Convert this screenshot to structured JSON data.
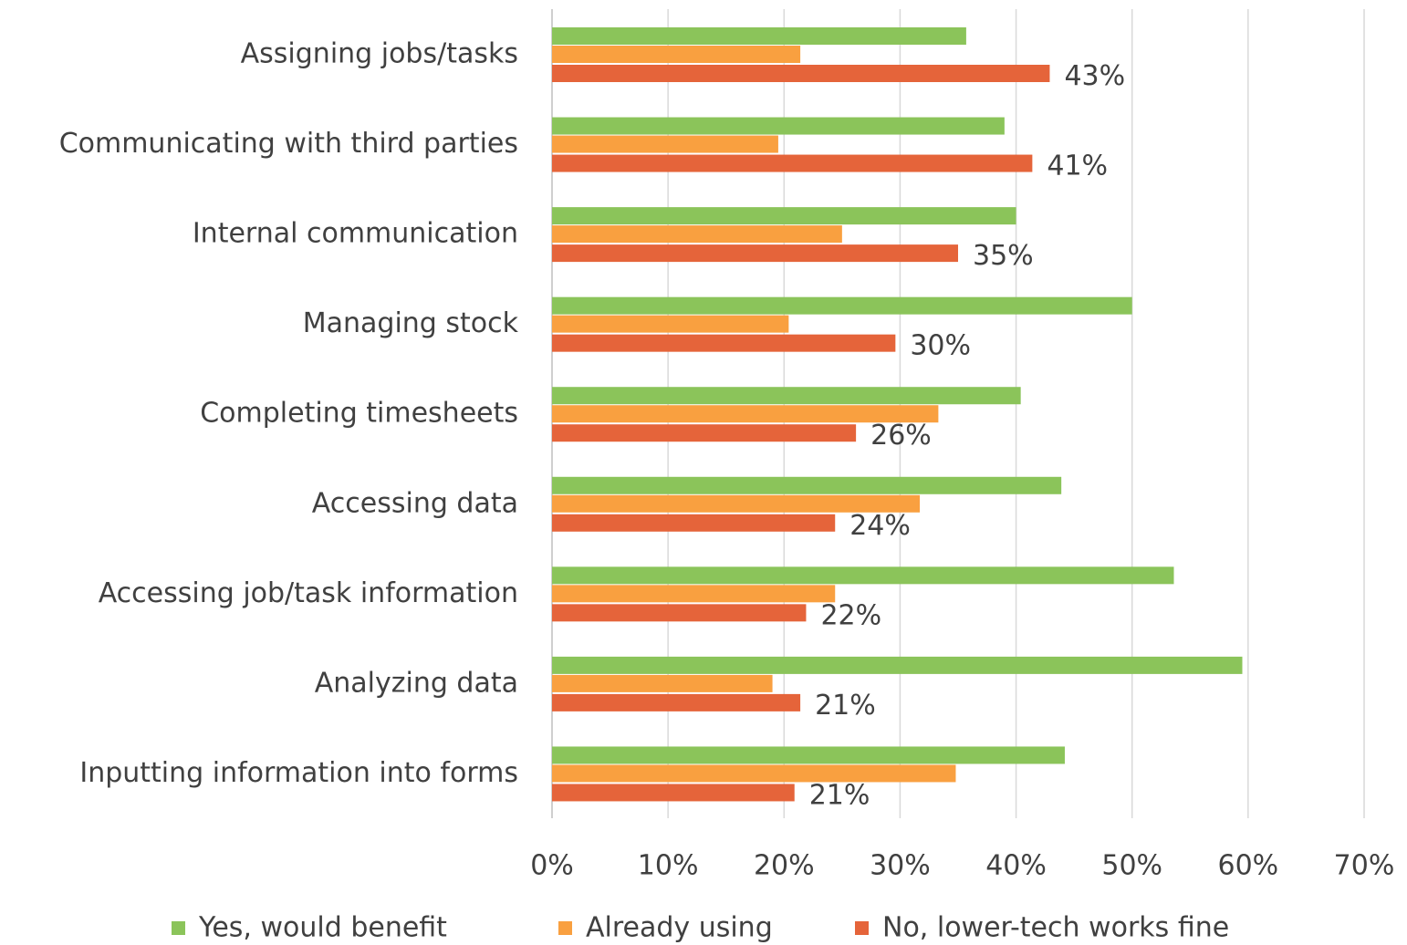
{
  "chart_data": {
    "type": "hbar",
    "categories": [
      "Assigning jobs/tasks",
      "Communicating with third parties",
      "Internal communication",
      "Managing stock",
      "Completing timesheets",
      "Accessing data",
      "Accessing job/task information",
      "Analyzing data",
      "Inputting information into forms"
    ],
    "series": [
      {
        "name": "Yes, would benefit",
        "color": "#8bc45a",
        "values": [
          35.7,
          39.0,
          40.0,
          50.0,
          40.4,
          43.9,
          53.6,
          59.5,
          44.2
        ]
      },
      {
        "name": "Already using",
        "color": "#f9a040",
        "values": [
          21.4,
          19.5,
          25.0,
          20.4,
          33.3,
          31.7,
          24.4,
          19.0,
          34.8
        ]
      },
      {
        "name": "No, lower-tech works fine",
        "color": "#e5643a",
        "values": [
          42.9,
          41.4,
          35.0,
          29.6,
          26.2,
          24.4,
          21.9,
          21.4,
          20.9
        ],
        "value_labels": [
          "43%",
          "41%",
          "35%",
          "30%",
          "26%",
          "24%",
          "22%",
          "21%",
          "21%"
        ]
      }
    ],
    "xlim": [
      0,
      70
    ],
    "xticks": [
      {
        "value": 0,
        "label": "0%"
      },
      {
        "value": 10,
        "label": "10%"
      },
      {
        "value": 20,
        "label": "20%"
      },
      {
        "value": 30,
        "label": "30%"
      },
      {
        "value": 40,
        "label": "40%"
      },
      {
        "value": 50,
        "label": "50%"
      },
      {
        "value": 60,
        "label": "60%"
      },
      {
        "value": 70,
        "label": "70%"
      }
    ],
    "grid": true,
    "legend": "bottom"
  }
}
